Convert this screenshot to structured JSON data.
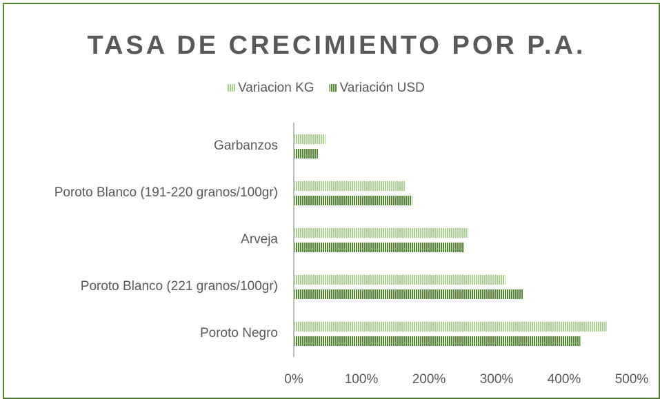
{
  "chart_data": {
    "type": "barh",
    "title": "TASA DE CRECIMIENTO POR P.A.",
    "categories": [
      "Garbanzos",
      "Poroto Blanco (191-220 granos/100gr)",
      "Arveja",
      "Poroto Blanco (221 granos/100gr)",
      "Poroto Negro"
    ],
    "series": [
      {
        "name": "Variacion KG",
        "color": "#a9d18e",
        "values": [
          47,
          165,
          258,
          313,
          463
        ]
      },
      {
        "name": "Variación USD",
        "color": "#4e8a2e",
        "values": [
          36,
          175,
          252,
          339,
          424
        ]
      }
    ],
    "xlim": [
      0,
      500
    ],
    "xticks": [
      {
        "value": 0,
        "label": "0%"
      },
      {
        "value": 100,
        "label": "100%"
      },
      {
        "value": 200,
        "label": "200%"
      },
      {
        "value": 300,
        "label": "300%"
      },
      {
        "value": 400,
        "label": "400%"
      },
      {
        "value": 500,
        "label": "500%"
      }
    ],
    "legend": "top"
  }
}
